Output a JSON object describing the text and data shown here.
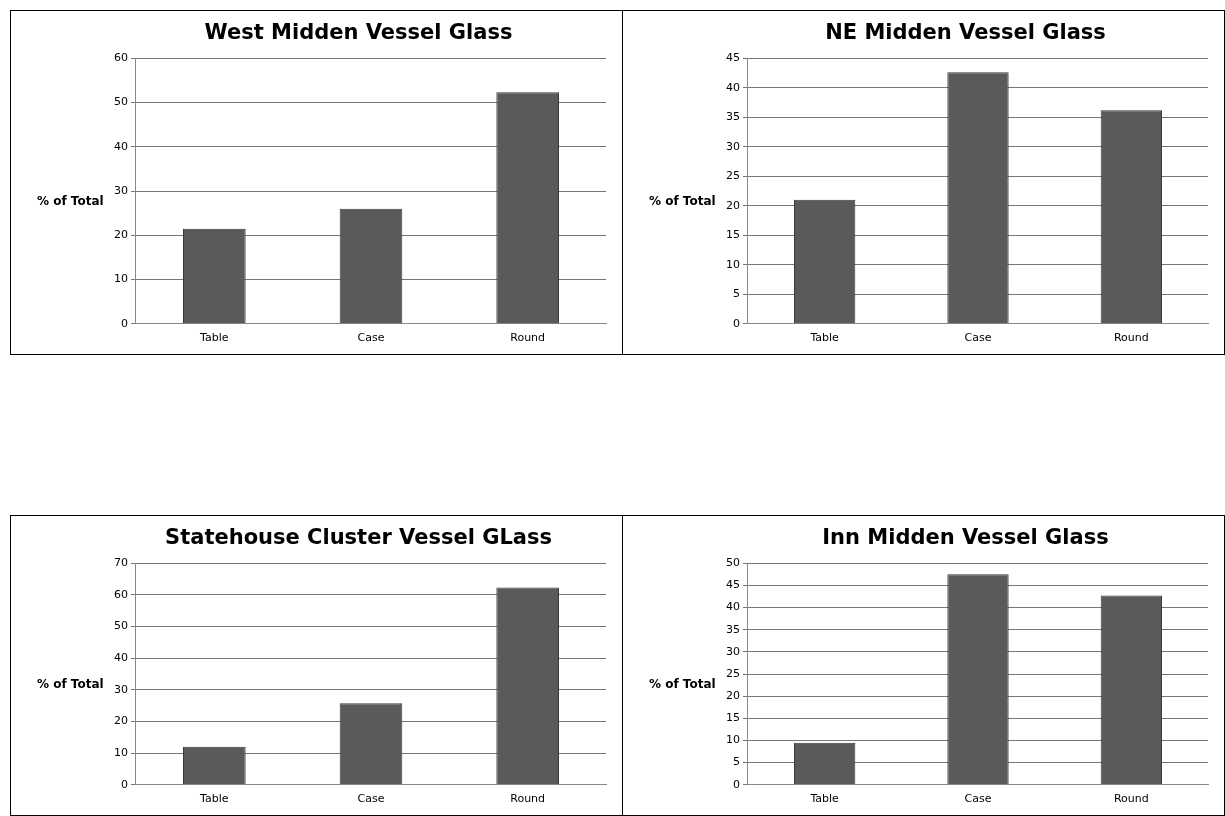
{
  "chart_data": [
    {
      "type": "bar",
      "title": "West Midden Vessel Glass",
      "ylabel": "% of Total",
      "categories": [
        "Table",
        "Case",
        "Round"
      ],
      "values": [
        21.5,
        26,
        52.3
      ],
      "color": "#5a5a5a",
      "ylim": [
        0,
        60
      ],
      "yticks": [
        0,
        10,
        20,
        30,
        40,
        50,
        60
      ],
      "grid": "y",
      "legend": false
    },
    {
      "type": "bar",
      "title": "NE Midden Vessel Glass",
      "ylabel": "% of Total",
      "categories": [
        "Table",
        "Case",
        "Round"
      ],
      "values": [
        21,
        42.6,
        36.2
      ],
      "color": "#5a5a5a",
      "ylim": [
        0,
        45
      ],
      "yticks": [
        0,
        5,
        10,
        15,
        20,
        25,
        30,
        35,
        40,
        45
      ],
      "grid": "y",
      "legend": false
    },
    {
      "type": "bar",
      "title": "Statehouse Cluster Vessel GLass",
      "ylabel": "% of Total",
      "categories": [
        "Table",
        "Case",
        "Round"
      ],
      "values": [
        12,
        25.8,
        62.3
      ],
      "color": "#5a5a5a",
      "ylim": [
        0,
        70
      ],
      "yticks": [
        0,
        10,
        20,
        30,
        40,
        50,
        60,
        70
      ],
      "grid": "y",
      "legend": false
    },
    {
      "type": "bar",
      "title": "Inn Midden Vessel Glass",
      "ylabel": "% of Total",
      "categories": [
        "Table",
        "Case",
        "Round"
      ],
      "values": [
        9.5,
        47.5,
        42.7
      ],
      "color": "#5a5a5a",
      "ylim": [
        0,
        50
      ],
      "yticks": [
        0,
        5,
        10,
        15,
        20,
        25,
        30,
        35,
        40,
        45,
        50
      ],
      "grid": "y",
      "legend": false
    }
  ]
}
